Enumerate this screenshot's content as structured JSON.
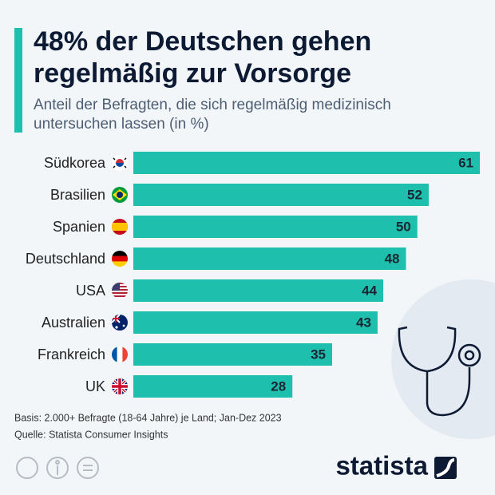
{
  "chart_data": {
    "type": "bar",
    "orientation": "horizontal",
    "title": [
      "48% der Deutschen gehen",
      "regelmäßig zur Vorsorge"
    ],
    "subtitle": [
      "Anteil der Befragten, die sich regelmäßig medizinisch",
      "untersuchen lassen (in %)"
    ],
    "categories": [
      "Südkorea",
      "Brasilien",
      "Spanien",
      "Deutschland",
      "USA",
      "Australien",
      "Frankreich",
      "UK"
    ],
    "values": [
      61,
      52,
      50,
      48,
      44,
      43,
      35,
      28
    ],
    "color": "#1fbfad",
    "notes": [
      "Basis: 2.000+ Befragte (18-64 Jahre) je Land; Jan-Dez 2023",
      "Quelle: Statista Consumer Insights"
    ],
    "brand": "statista"
  }
}
